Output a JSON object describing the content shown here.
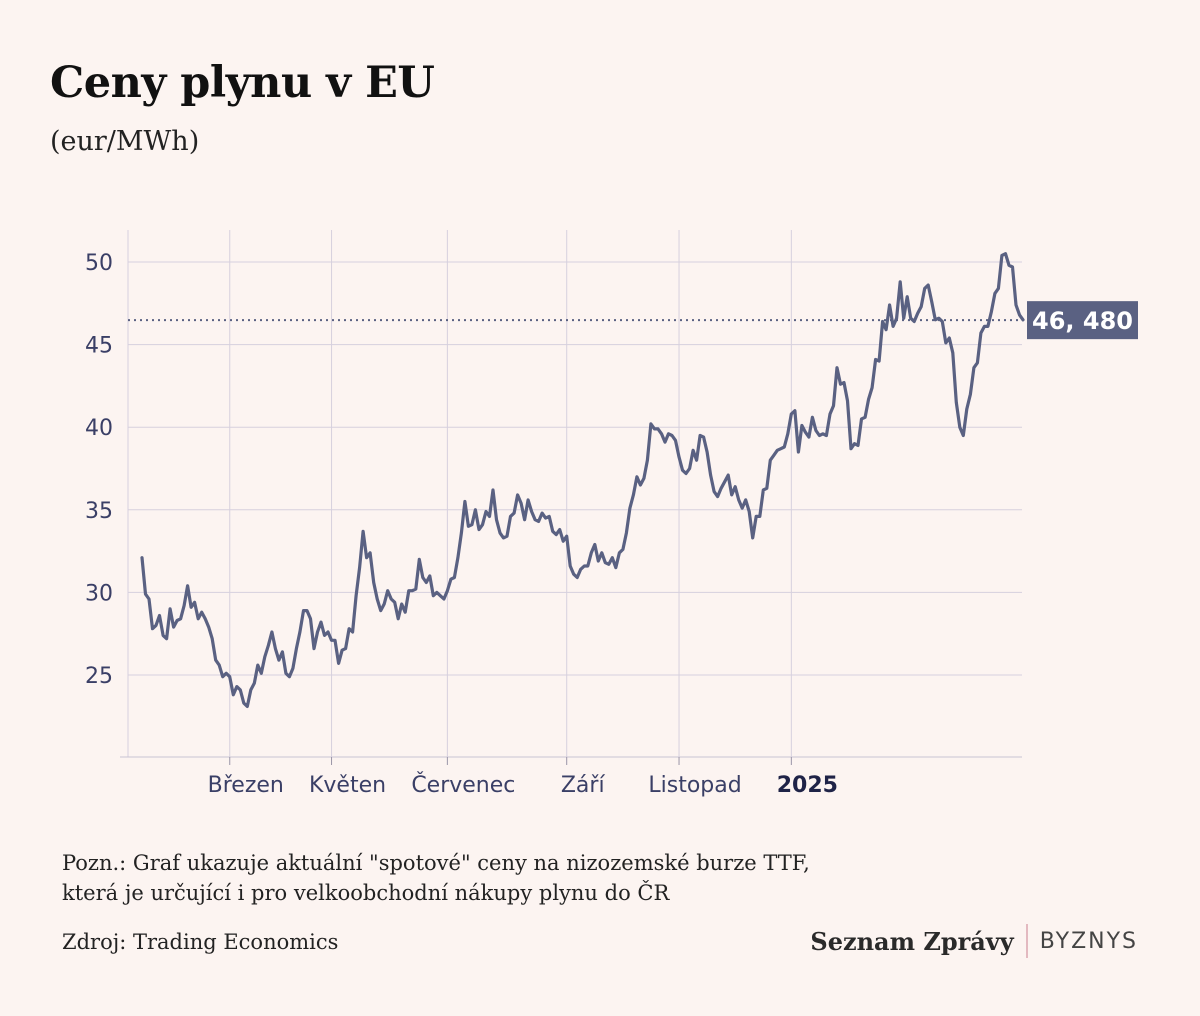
{
  "header": {
    "title": "Ceny plynu v EU",
    "subtitle": "(eur/MWh)"
  },
  "chart_data": {
    "type": "line",
    "title": "Ceny plynu v EU",
    "ylabel": "(eur/MWh)",
    "xlabel": "",
    "ylim": [
      20,
      52
    ],
    "yticks": [
      25,
      30,
      35,
      40,
      45,
      50
    ],
    "grid": true,
    "line_color": "#5a6182",
    "reference": {
      "value": 46.48,
      "label": "46, 480",
      "style": "dotted"
    },
    "x_ticks": [
      {
        "label": "Březen",
        "index": 25,
        "bold": false
      },
      {
        "label": "Květen",
        "index": 54,
        "bold": false
      },
      {
        "label": "Červenec",
        "index": 87,
        "bold": false
      },
      {
        "label": "Září",
        "index": 121,
        "bold": false
      },
      {
        "label": "Listopad",
        "index": 153,
        "bold": false
      },
      {
        "label": "2025",
        "index": 185,
        "bold": true
      }
    ],
    "series": [
      {
        "values": [
          32.1,
          29.9,
          29.6,
          27.8,
          28.0,
          28.6,
          27.4,
          27.2,
          29.0,
          27.9,
          28.3,
          28.4,
          29.2,
          30.4,
          29.1,
          29.4,
          28.4,
          28.8,
          28.4,
          27.9,
          27.2,
          25.9,
          25.6,
          24.9,
          25.1,
          24.9,
          23.8,
          24.3,
          24.1,
          23.3,
          23.1,
          24.1,
          24.5,
          25.6,
          25.1,
          26.1,
          26.8,
          27.6,
          26.6,
          25.9,
          26.4,
          25.1,
          24.9,
          25.4,
          26.6,
          27.6,
          28.9,
          28.9,
          28.4,
          26.6,
          27.6,
          28.2,
          27.4,
          27.6,
          27.1,
          27.1,
          25.7,
          26.5,
          26.6,
          27.8,
          27.6,
          29.8,
          31.5,
          33.7,
          32.1,
          32.4,
          30.6,
          29.6,
          28.9,
          29.3,
          30.1,
          29.6,
          29.4,
          28.4,
          29.3,
          28.8,
          30.1,
          30.1,
          30.2,
          32.0,
          30.9,
          30.6,
          31.0,
          29.8,
          30.0,
          29.8,
          29.6,
          30.1,
          30.8,
          30.9,
          32.1,
          33.6,
          35.5,
          34.0,
          34.1,
          35.0,
          33.8,
          34.1,
          34.9,
          34.6,
          36.2,
          34.4,
          33.6,
          33.3,
          33.4,
          34.6,
          34.8,
          35.9,
          35.4,
          34.4,
          35.6,
          34.9,
          34.4,
          34.3,
          34.8,
          34.5,
          34.6,
          33.7,
          33.5,
          33.8,
          33.1,
          33.4,
          31.6,
          31.1,
          30.9,
          31.4,
          31.6,
          31.6,
          32.4,
          32.9,
          31.9,
          32.4,
          31.8,
          31.7,
          32.1,
          31.5,
          32.4,
          32.6,
          33.6,
          35.1,
          35.9,
          37.0,
          36.5,
          36.9,
          38.0,
          40.2,
          39.9,
          39.9,
          39.6,
          39.1,
          39.6,
          39.5,
          39.2,
          38.2,
          37.4,
          37.2,
          37.5,
          38.6,
          38.0,
          39.5,
          39.4,
          38.5,
          37.1,
          36.1,
          35.8,
          36.3,
          36.7,
          37.1,
          35.9,
          36.4,
          35.6,
          35.1,
          35.6,
          34.9,
          33.3,
          34.6,
          34.6,
          36.2,
          36.3,
          38.0,
          38.3,
          38.6,
          38.7,
          38.8,
          39.6,
          40.8,
          41.0,
          38.5,
          40.1,
          39.7,
          39.4,
          40.6,
          39.8,
          39.5,
          39.6,
          39.5,
          40.8,
          41.3,
          43.6,
          42.6,
          42.7,
          41.6,
          38.7,
          39.0,
          38.9,
          40.5,
          40.6,
          41.7,
          42.4,
          44.1,
          44.0,
          46.4,
          45.9,
          47.4,
          46.1,
          46.6,
          48.8,
          46.6,
          47.9,
          46.6,
          46.4,
          46.9,
          47.3,
          48.4,
          48.6,
          47.6,
          46.5,
          46.6,
          46.4,
          45.1,
          45.4,
          44.5,
          41.5,
          40.0,
          39.5,
          41.1,
          42.0,
          43.6,
          43.9,
          45.7,
          46.1,
          46.1,
          47.0,
          48.1,
          48.4,
          50.4,
          50.5,
          49.8,
          49.7,
          47.4,
          46.8,
          46.5
        ]
      }
    ]
  },
  "notes": {
    "line1": "Pozn.: Graf ukazuje aktuální \"spotové\" ceny na nizozemské burze TTF,",
    "line2": "která je určující i pro velkoobchodní nákupy plynu do ČR",
    "source": "Zdroj: Trading Economics"
  },
  "brand": {
    "name": "Seznam Zprávy",
    "section": "BYZNYS",
    "separator_color": "#e3b9c0"
  }
}
